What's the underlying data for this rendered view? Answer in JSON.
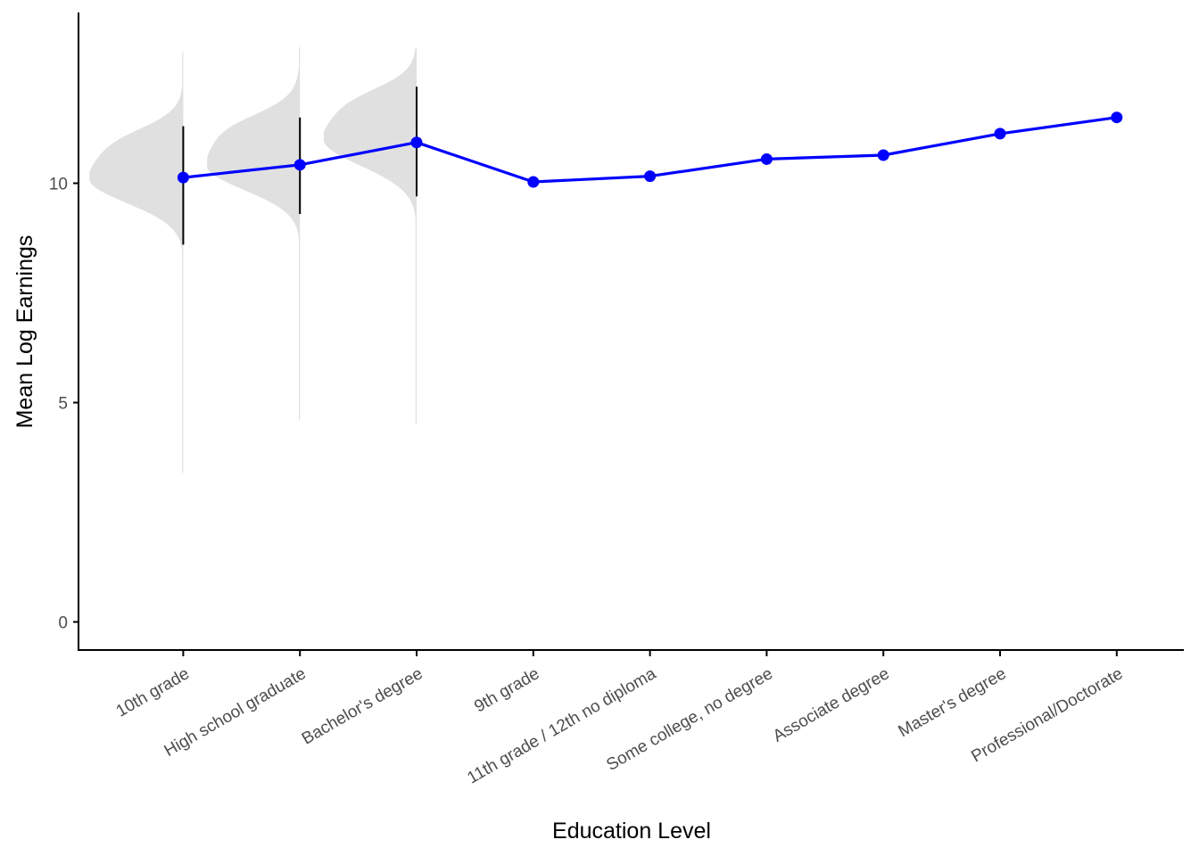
{
  "chart_data": {
    "type": "line",
    "xlabel": "Education Level",
    "ylabel": "Mean Log Earnings",
    "categories": [
      "10th grade",
      "High school graduate",
      "Bachelor's degree",
      "9th grade",
      "11th grade / 12th no diploma",
      "Some college, no degree",
      "Associate degree",
      "Master's degree",
      "Professional/Doctorate"
    ],
    "series": [
      {
        "values": [
          10.13,
          10.42,
          10.93,
          10.03,
          10.16,
          10.55,
          10.64,
          11.13,
          11.5
        ],
        "color": "#0000ff"
      }
    ],
    "error_bars": [
      {
        "category": "10th grade",
        "low": 8.6,
        "high": 11.3
      },
      {
        "category": "High school graduate",
        "low": 9.3,
        "high": 11.5
      },
      {
        "category": "Bachelor's degree",
        "low": 9.7,
        "high": 12.2
      }
    ],
    "distributions": [
      {
        "category": "10th grade",
        "range": [
          3.4,
          13.0
        ],
        "mode": 10.1
      },
      {
        "category": "High school graduate",
        "range": [
          4.6,
          13.1
        ],
        "mode": 10.4
      },
      {
        "category": "Bachelor's degree",
        "range": [
          4.5,
          13.1
        ],
        "mode": 11.0
      }
    ],
    "yticks": [
      0,
      5,
      10
    ],
    "ylim": [
      -0.65,
      13.9
    ],
    "grid": false,
    "colors": {
      "line": "#0000ff",
      "density": "#e0e0e0",
      "error_bar": "#000000",
      "axis": "#000000"
    }
  }
}
